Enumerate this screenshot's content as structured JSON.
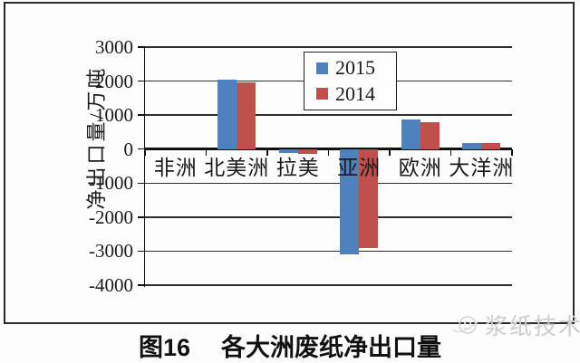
{
  "figure": {
    "label": "图16",
    "title": "各大洲废纸净出口量"
  },
  "watermark": {
    "text": "浆纸技术",
    "logo": "smiley-orbit-logo"
  },
  "chart_data": {
    "type": "bar",
    "title": "图16 各大洲废纸净出口量",
    "xlabel": "",
    "ylabel": "净出口量/万吨",
    "categories": [
      "非洲",
      "北美洲",
      "拉美",
      "亚洲",
      "欧洲",
      "大洋洲"
    ],
    "series": [
      {
        "name": "2015",
        "color": "#4F81BD",
        "values": [
          0,
          2050,
          -120,
          -3100,
          880,
          180
        ]
      },
      {
        "name": "2014",
        "color": "#C0504D",
        "values": [
          0,
          1950,
          -130,
          -2900,
          800,
          175
        ]
      }
    ],
    "ylim": [
      -4000,
      3000
    ],
    "yticks": [
      3000,
      2000,
      1000,
      0,
      -1000,
      -2000,
      -3000,
      -4000
    ],
    "grid": true,
    "legend_position": "top-center",
    "axis_color": "#111111",
    "background_color": "#fdfdfd"
  }
}
